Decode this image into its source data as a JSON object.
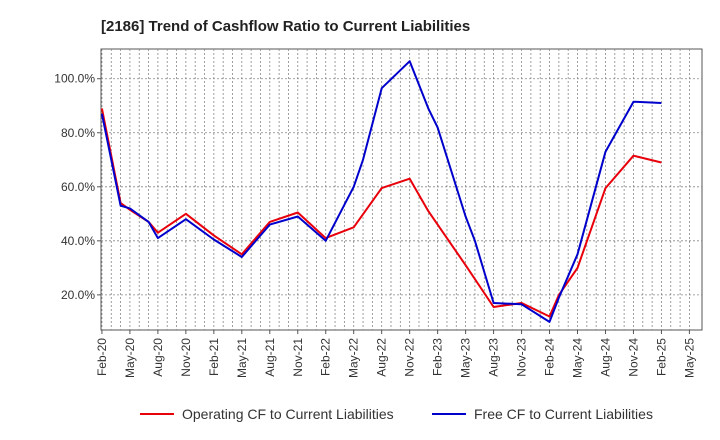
{
  "chart_data": {
    "type": "line",
    "title": "[2186]  Trend of Cashflow Ratio to Current Liabilities",
    "xlabel": "",
    "ylabel": "",
    "y_ticks": [
      "20.0%",
      "40.0%",
      "60.0%",
      "80.0%",
      "100.0%"
    ],
    "y_tick_values": [
      20,
      40,
      60,
      80,
      100
    ],
    "ylim": [
      7,
      111
    ],
    "x": [
      "Feb-20",
      "May-20",
      "Aug-20",
      "Nov-20",
      "Feb-21",
      "May-21",
      "Aug-21",
      "Nov-21",
      "Feb-22",
      "May-22",
      "Aug-22",
      "Nov-22",
      "Feb-23",
      "May-23",
      "Aug-23",
      "Nov-23",
      "Feb-24",
      "May-24",
      "Aug-24",
      "Nov-24",
      "Feb-25",
      "May-25"
    ],
    "grid": true,
    "legend_position": "bottom",
    "series": [
      {
        "name": "Operating CF to Current Liabilities",
        "color": "#e8000b",
        "x": [
          "Feb-20",
          "Apr-20",
          "May-20",
          "Jul-20",
          "Aug-20",
          "Nov-20",
          "Feb-21",
          "May-21",
          "Aug-21",
          "Nov-21",
          "Feb-22",
          "May-22",
          "Aug-22",
          "Nov-22",
          "Jan-23",
          "May-23",
          "Aug-23",
          "Nov-23",
          "Feb-24",
          "Mar-24",
          "May-24",
          "Aug-24",
          "Nov-24",
          "Feb-25"
        ],
        "values": [
          89,
          54,
          51.5,
          47,
          43,
          50,
          42,
          35,
          47,
          50.5,
          41,
          45,
          59.5,
          63,
          51,
          31,
          15.5,
          17,
          12,
          20,
          30,
          59.5,
          71.5,
          69
        ]
      },
      {
        "name": "Free CF to Current Liabilities",
        "color": "#0000cc",
        "x": [
          "Feb-20",
          "Apr-20",
          "May-20",
          "Jul-20",
          "Aug-20",
          "Nov-20",
          "Feb-21",
          "May-21",
          "Aug-21",
          "Nov-21",
          "Feb-22",
          "May-22",
          "Jun-22",
          "Aug-22",
          "Nov-22",
          "Jan-23",
          "Feb-23",
          "May-23",
          "Jun-23",
          "Aug-23",
          "Nov-23",
          "Feb-24",
          "Mar-24",
          "May-24",
          "Aug-24",
          "Nov-24",
          "Feb-25"
        ],
        "values": [
          87,
          53,
          52,
          47,
          41,
          48,
          40.5,
          34,
          46,
          49,
          40,
          60,
          70,
          96.5,
          106.5,
          89,
          82,
          49,
          40,
          17,
          16.5,
          10,
          19,
          35,
          73,
          91.5,
          91
        ]
      }
    ]
  }
}
